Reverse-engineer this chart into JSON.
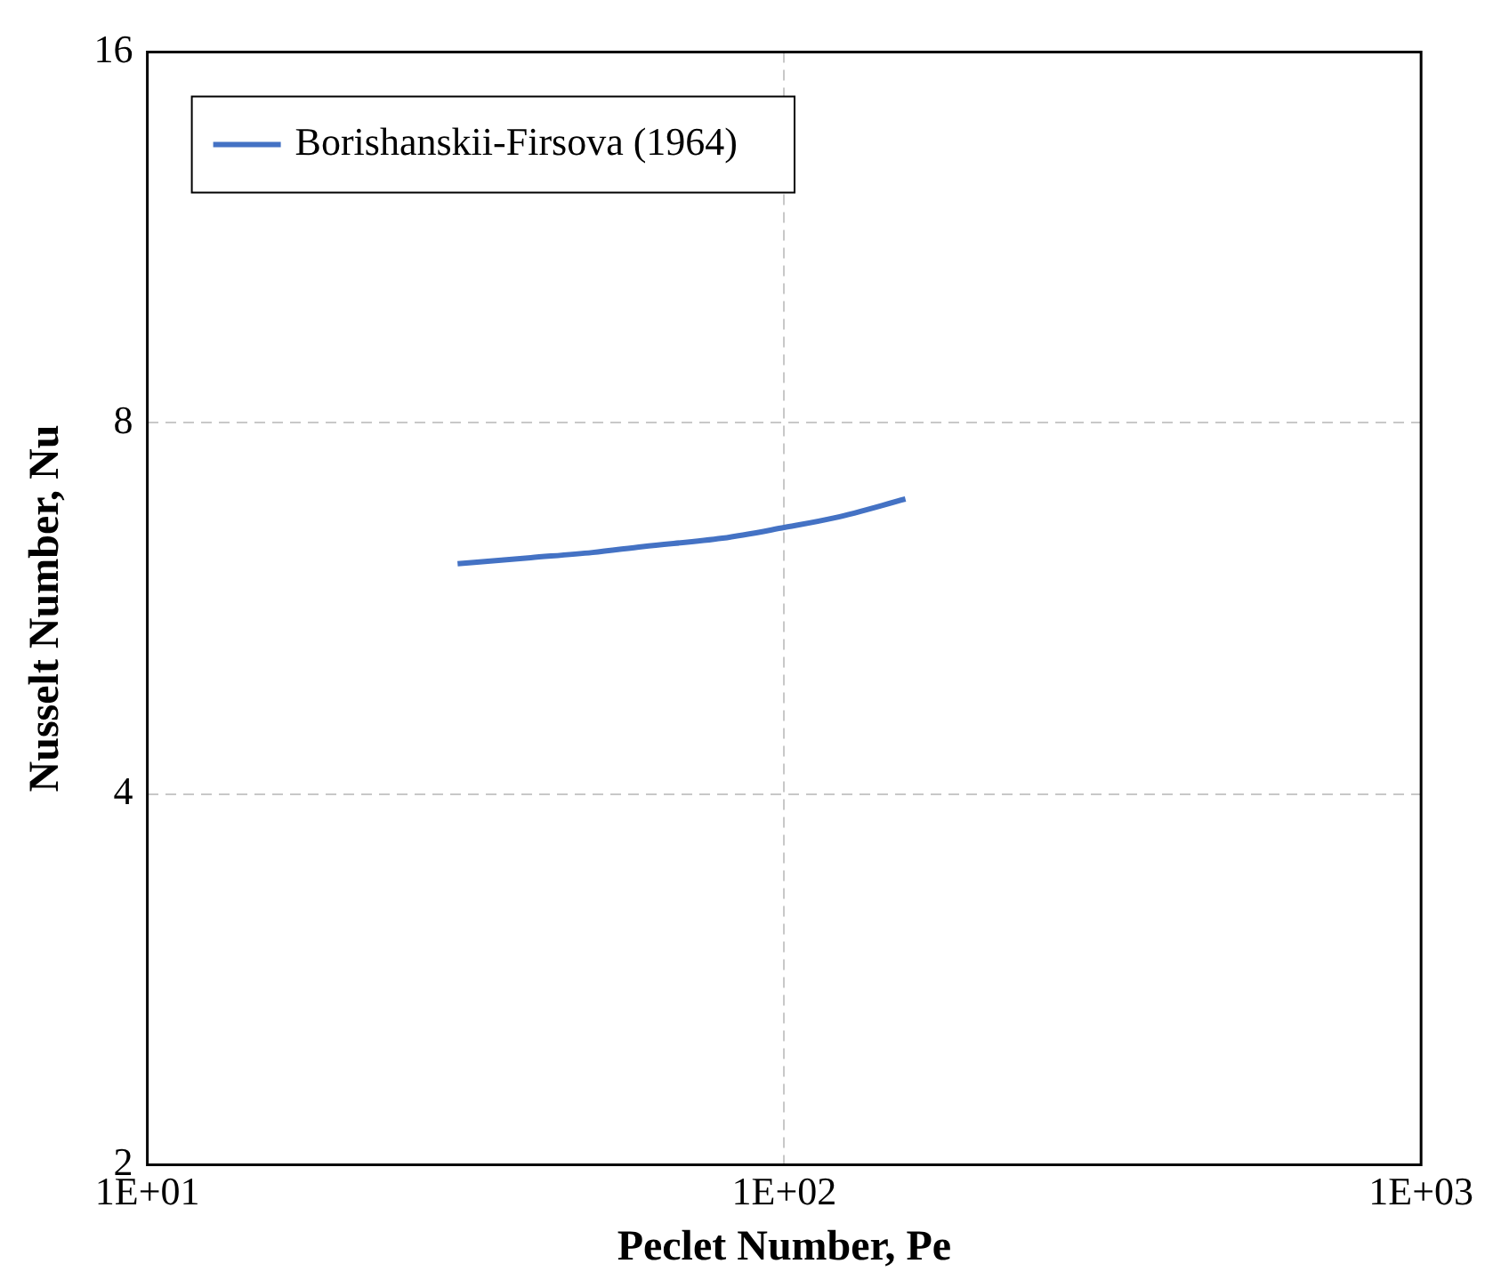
{
  "chart_data": {
    "type": "line",
    "xlabel": "Peclet Number, Pe",
    "ylabel": "Nusselt Number, Nu",
    "log": "xy",
    "grid": true,
    "legend": "top left",
    "marker": "none",
    "line_style": "solid",
    "xlim": [
      10,
      1000
    ],
    "xticks": [
      {
        "value": 10,
        "label": "1E+01"
      },
      {
        "value": 100,
        "label": "1E+02"
      },
      {
        "value": 1000,
        "label": "1E+03"
      }
    ],
    "ylim": [
      2,
      16
    ],
    "yticks": [
      2,
      4,
      8,
      16
    ],
    "series": [
      {
        "name": "Borishanskii-Firsova (1964)",
        "color": "#4472c4",
        "x": [
          30.7,
          40,
          50,
          60,
          80,
          100,
          120,
          155
        ],
        "values": [
          6.15,
          6.22,
          6.28,
          6.35,
          6.45,
          6.58,
          6.7,
          6.94
        ]
      }
    ]
  }
}
